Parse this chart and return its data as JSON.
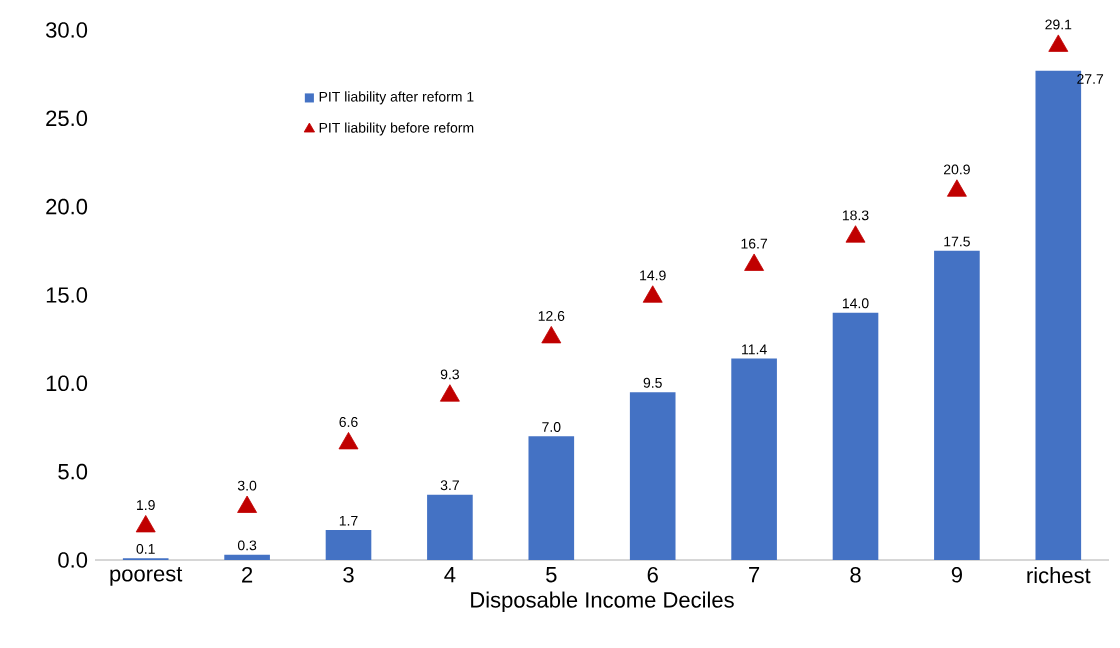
{
  "chart_data": {
    "type": "bar",
    "xlabel": "Disposable Income Deciles",
    "categories": [
      "poorest",
      "2",
      "3",
      "4",
      "5",
      "6",
      "7",
      "8",
      "9",
      "richest"
    ],
    "series": [
      {
        "name": "PIT liability after reform 1",
        "color": "#4472c4",
        "values": [
          0.1,
          0.3,
          1.7,
          3.7,
          7.0,
          9.5,
          11.4,
          14.0,
          17.5,
          27.7
        ],
        "value_labels": [
          "0.1",
          "0.3",
          "1.7",
          "3.7",
          "7.0",
          "9.5",
          "11.4",
          "14.0",
          "17.5",
          "27.7"
        ]
      },
      {
        "name": "PIT liability before reform",
        "type": "scatter",
        "marker": "triangle",
        "color": "#c00000",
        "values": [
          1.9,
          3.0,
          6.6,
          9.3,
          12.6,
          14.9,
          16.7,
          18.3,
          20.9,
          29.1
        ],
        "value_labels": [
          "1.9",
          "3.0",
          "6.6",
          "9.3",
          "12.6",
          "14.9",
          "16.7",
          "18.3",
          "20.9",
          "29.1"
        ]
      }
    ],
    "ylim": [
      0,
      30
    ],
    "yticks": [
      {
        "value": 0,
        "label": "0.0"
      },
      {
        "value": 5,
        "label": "5.0"
      },
      {
        "value": 10,
        "label": "10.0"
      },
      {
        "value": 15,
        "label": "15.0"
      },
      {
        "value": 20,
        "label": "20.0"
      },
      {
        "value": 25,
        "label": "25.0"
      },
      {
        "value": 30,
        "label": "30.0"
      }
    ],
    "grid": false,
    "legend": "top left"
  }
}
